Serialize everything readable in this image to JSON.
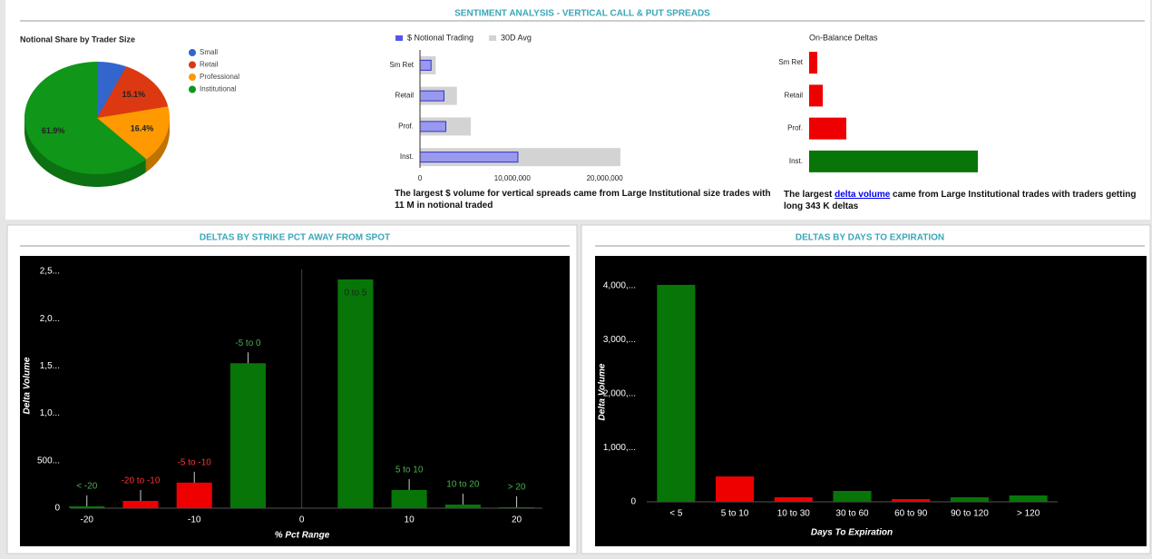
{
  "title": "SENTIMENT ANALYSIS - VERTICAL CALL & PUT SPREADS",
  "chart_data": [
    {
      "type": "pie",
      "title": "Notional Share by Trader Size",
      "categories": [
        "Small",
        "Retail",
        "Professional",
        "Institutional"
      ],
      "values": [
        6.6,
        15.1,
        16.4,
        61.9
      ],
      "value_labels": [
        null,
        "15.1%",
        "16.4%",
        "61.9%"
      ],
      "colors": [
        "#3366cc",
        "#dc3912",
        "#ff9900",
        "#109618"
      ],
      "three_d": true,
      "legend": "right"
    },
    {
      "type": "bar",
      "orientation": "horizontal",
      "categories": [
        "Sm Ret",
        "Retail",
        "Prof.",
        "Inst."
      ],
      "series": [
        {
          "name": "30D Avg",
          "color": "#d3d3d3",
          "values": [
            1700000,
            4000000,
            5500000,
            21700000
          ]
        },
        {
          "name": "$ Notional Trading",
          "color": "#9999ee",
          "values": [
            1200000,
            2600000,
            2800000,
            10600000
          ]
        }
      ],
      "xlim": [
        0,
        22000000
      ],
      "xticks": [
        0,
        {
          "value": 10000000,
          "label": "10,000,000"
        },
        {
          "value": 20000000,
          "label": "20,000,000"
        }
      ],
      "legend": "top",
      "note": "The largest $ volume for vertical spreads came from Large Institutional size trades with 11 M in notional traded"
    },
    {
      "type": "bar",
      "orientation": "horizontal",
      "title": "On-Balance Deltas",
      "categories": [
        "Sm Ret",
        "Retail",
        "Prof.",
        "Inst."
      ],
      "values": [
        16600,
        27700,
        75600,
        343000
      ],
      "colors": [
        "#ee0000",
        "#ee0000",
        "#ee0000",
        "#087508"
      ],
      "xlim": [
        0,
        343000
      ],
      "note": {
        "before": "The largest ",
        "link": "delta volume",
        "after": " came from Large Institutional trades with traders getting long 343 K deltas"
      }
    },
    {
      "type": "bar",
      "title": "DELTAS BY STRIKE PCT AWAY FROM SPOT",
      "x": [
        -20,
        -15,
        -10,
        -5,
        5,
        10,
        15,
        20
      ],
      "categories": [
        "< -20",
        "-20 to -10",
        "-5 to -10",
        "-5 to 0",
        "0 to 5",
        "5 to 10",
        "10 to 20",
        "> 20"
      ],
      "values": [
        20000,
        77000,
        270000,
        1530000,
        2415000,
        192000,
        38000,
        10000
      ],
      "colors": [
        "#087508",
        "#ee0000",
        "#ee0000",
        "#087508",
        "#087508",
        "#087508",
        "#087508",
        "#087508"
      ],
      "xlim": [
        -21.5,
        22.4
      ],
      "xticks": [
        -20,
        -10,
        0,
        10,
        20
      ],
      "ylim": [
        0,
        2500000
      ],
      "yticks": [
        0,
        {
          "value": 500000,
          "label": "500..."
        },
        {
          "value": 1000000,
          "label": "1,0..."
        },
        {
          "value": 1500000,
          "label": "1,5..."
        },
        {
          "value": 2000000,
          "label": "2,0..."
        },
        {
          "value": 2500000,
          "label": "2,5..."
        }
      ],
      "xlabel": "% Pct Range",
      "ylabel": "Delta Volume"
    },
    {
      "type": "bar",
      "title": "DELTAS BY DAYS TO EXPIRATION",
      "categories": [
        "< 5",
        "5 to 10",
        "10 to 30",
        "30 to 60",
        "60 to 90",
        "90 to 120",
        "> 120"
      ],
      "values": [
        4017000,
        470000,
        84000,
        202000,
        50000,
        84000,
        118000
      ],
      "colors": [
        "#087508",
        "#ee0000",
        "#ee0000",
        "#087508",
        "#ee0000",
        "#087508",
        "#087508"
      ],
      "ylim": [
        0,
        4200000
      ],
      "yticks": [
        0,
        {
          "value": 1000000,
          "label": "1,000,..."
        },
        {
          "value": 2000000,
          "label": "2,000,..."
        },
        {
          "value": 3000000,
          "label": "3,000,..."
        },
        {
          "value": 4000000,
          "label": "4,000,..."
        }
      ],
      "xlabel": "Days To Expiration",
      "ylabel": "Delta Volume"
    }
  ]
}
